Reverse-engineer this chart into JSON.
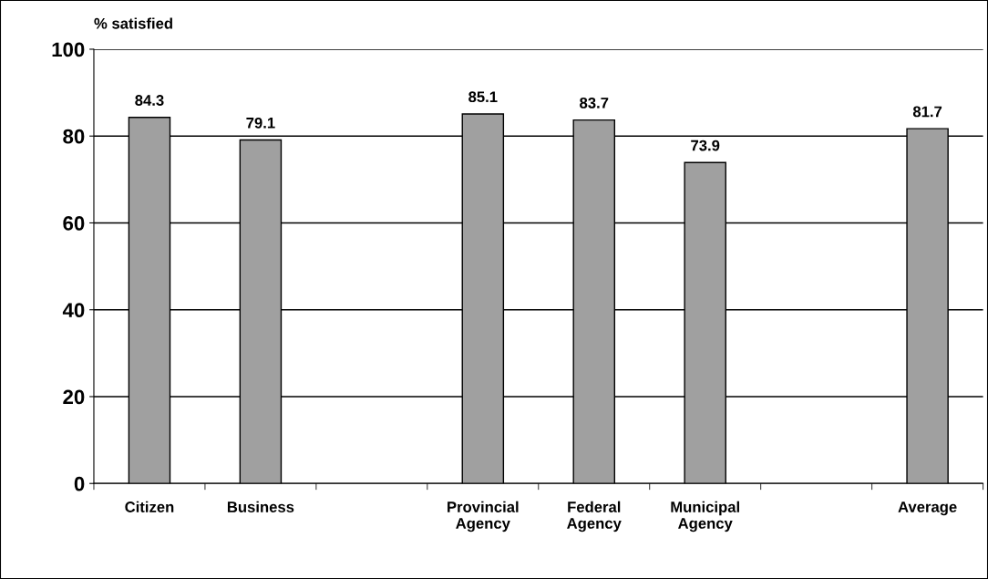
{
  "chart_data": {
    "type": "bar",
    "ylabel": "% satisfied",
    "categories": [
      "Citizen",
      "Business",
      null,
      "Provincial\nAgency",
      "Federal\nAgency",
      "Municipal\nAgency",
      null,
      "Average"
    ],
    "values": [
      84.3,
      79.1,
      null,
      85.1,
      83.7,
      73.9,
      null,
      81.7
    ],
    "color": "#a0a0a0",
    "ylim": [
      0,
      100
    ],
    "yticks": [
      0,
      20,
      40,
      60,
      80,
      100
    ],
    "grid": "y",
    "data_labels": true,
    "legend": false
  }
}
